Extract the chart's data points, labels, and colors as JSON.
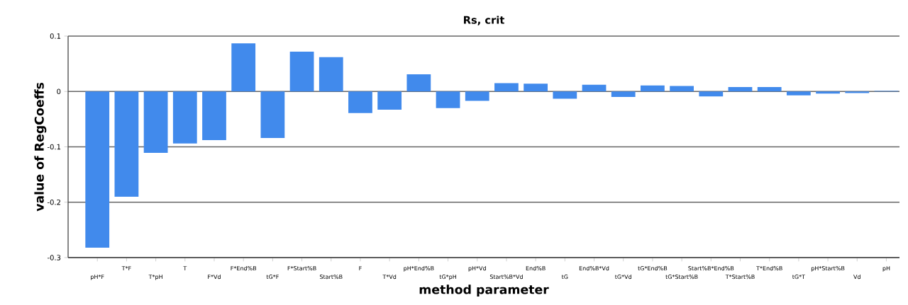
{
  "chart_data": {
    "type": "bar",
    "title": "Rs, crit",
    "xlabel": "method parameter",
    "ylabel": "value of RegCoeffs",
    "categories": [
      "pH*F",
      "T*F",
      "T*pH",
      "T",
      "F*Vd",
      "F*End%B",
      "tG*F",
      "F*Start%B",
      "Start%B",
      "F",
      "T*Vd",
      "pH*End%B",
      "tG*pH",
      "pH*Vd",
      "Start%B*Vd",
      "End%B",
      "tG",
      "End%B*Vd",
      "tG*Vd",
      "tG*End%B",
      "tG*Start%B",
      "Start%B*End%B",
      "T*Start%B",
      "T*End%B",
      "tG*T",
      "pH*Start%B",
      "Vd",
      "pH"
    ],
    "values": [
      -0.282,
      -0.19,
      -0.111,
      -0.094,
      -0.088,
      0.087,
      -0.084,
      0.072,
      0.062,
      -0.039,
      -0.033,
      0.031,
      -0.03,
      -0.017,
      0.015,
      0.014,
      -0.013,
      0.012,
      -0.01,
      0.011,
      0.01,
      -0.009,
      0.008,
      0.008,
      -0.007,
      -0.004,
      -0.003,
      0.001
    ],
    "color": "#418aec",
    "ylim": [
      -0.3,
      0.1
    ],
    "yticks": [
      -0.3,
      -0.2,
      -0.1,
      0,
      0.1
    ],
    "grid": "y"
  }
}
